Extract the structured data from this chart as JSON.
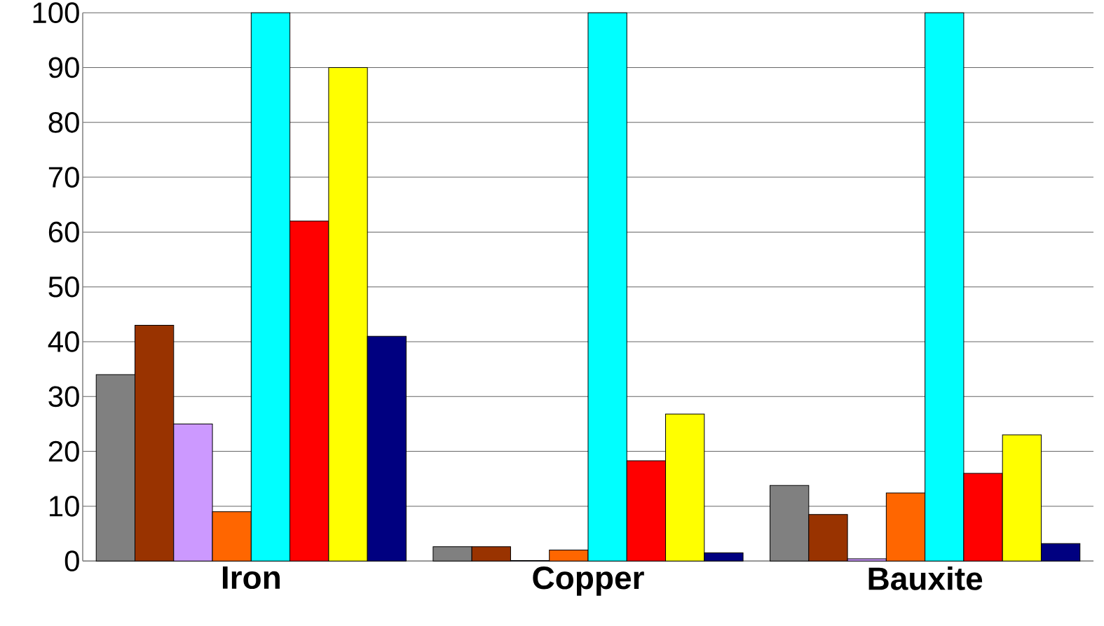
{
  "chart_data": {
    "type": "bar",
    "categories": [
      "Iron",
      "Copper",
      "Bauxite"
    ],
    "series": [
      {
        "color": "#808080",
        "values": [
          34,
          2.6,
          13.8
        ]
      },
      {
        "color": "#993300",
        "values": [
          43,
          2.6,
          8.5
        ]
      },
      {
        "color": "#cc99ff",
        "values": [
          25,
          0.1,
          0.4
        ]
      },
      {
        "color": "#ff6600",
        "values": [
          9,
          2,
          12.4
        ]
      },
      {
        "color": "#00ffff",
        "values": [
          100,
          100,
          100
        ]
      },
      {
        "color": "#ff0000",
        "values": [
          62,
          18.3,
          16
        ]
      },
      {
        "color": "#ffff00",
        "values": [
          90,
          26.8,
          23
        ]
      },
      {
        "color": "#000080",
        "values": [
          41,
          1.5,
          3.2
        ]
      }
    ],
    "ylim": [
      0,
      100
    ],
    "yticks": [
      0,
      10,
      20,
      30,
      40,
      50,
      60,
      70,
      80,
      90,
      100
    ],
    "grid": "y"
  }
}
